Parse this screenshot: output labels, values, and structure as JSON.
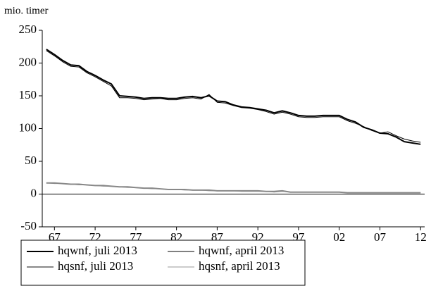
{
  "chart_data": {
    "type": "line",
    "y_axis_label": "mio. timer",
    "x": [
      1966,
      1967,
      1968,
      1969,
      1970,
      1971,
      1972,
      1973,
      1974,
      1975,
      1976,
      1977,
      1978,
      1979,
      1980,
      1981,
      1982,
      1983,
      1984,
      1985,
      1986,
      1987,
      1988,
      1989,
      1990,
      1991,
      1992,
      1993,
      1994,
      1995,
      1996,
      1997,
      1998,
      1999,
      2000,
      2001,
      2002,
      2003,
      2004,
      2005,
      2006,
      2007,
      2008,
      2009,
      2010,
      2011,
      2012
    ],
    "series": [
      {
        "name": "hqwnf, juli 2013",
        "color": "#000000",
        "width": 2,
        "values": [
          221,
          213,
          204,
          197,
          196,
          187,
          181,
          174,
          168,
          150,
          149,
          148,
          146,
          147,
          147,
          146,
          146,
          148,
          149,
          147,
          150,
          142,
          141,
          136,
          133,
          132,
          130,
          128,
          124,
          127,
          124,
          120,
          119,
          119,
          120,
          120,
          120,
          114,
          110,
          102,
          98,
          93,
          92,
          87,
          80,
          78,
          76
        ]
      },
      {
        "name": "hqwnf, april 2013",
        "color": "#000000",
        "width": 1,
        "values": [
          219,
          211,
          202,
          195,
          194,
          185,
          179,
          172,
          165,
          147,
          147,
          146,
          144,
          145,
          146,
          144,
          144,
          146,
          147,
          145,
          152,
          140,
          139,
          135,
          132,
          131,
          129,
          126,
          122,
          125,
          122,
          118,
          117,
          117,
          118,
          118,
          118,
          112,
          108,
          103,
          97,
          93,
          95,
          89,
          84,
          81,
          79
        ]
      },
      {
        "name": "hqsnf, juli 2013",
        "color": "#888888",
        "width": 2,
        "values": [
          17,
          17,
          16,
          15,
          15,
          14,
          13,
          13,
          12,
          11,
          11,
          10,
          9,
          9,
          8,
          7,
          7,
          7,
          6,
          6,
          6,
          5,
          5,
          5,
          5,
          5,
          5,
          4,
          4,
          5,
          3,
          3,
          3,
          3,
          3,
          3,
          3,
          2,
          2,
          2,
          2,
          2,
          2,
          2,
          2,
          2,
          2
        ]
      },
      {
        "name": "hqsnf, april 2013",
        "color": "#999999",
        "width": 1,
        "values": [
          17,
          16,
          16,
          15,
          14,
          14,
          13,
          12,
          12,
          11,
          10,
          10,
          9,
          8,
          8,
          7,
          7,
          6,
          6,
          6,
          5,
          5,
          5,
          5,
          4,
          4,
          4,
          4,
          3,
          4,
          3,
          3,
          3,
          3,
          3,
          3,
          3,
          2,
          2,
          2,
          2,
          2,
          2,
          2,
          2,
          2,
          2
        ]
      }
    ],
    "xlim": [
      1965.5,
      2012.5
    ],
    "xticks": [
      {
        "value": 1967,
        "label": "67"
      },
      {
        "value": 1972,
        "label": "72"
      },
      {
        "value": 1977,
        "label": "77"
      },
      {
        "value": 1982,
        "label": "82"
      },
      {
        "value": 1987,
        "label": "87"
      },
      {
        "value": 1992,
        "label": "92"
      },
      {
        "value": 1997,
        "label": "97"
      },
      {
        "value": 2002,
        "label": "02"
      },
      {
        "value": 2007,
        "label": "07"
      },
      {
        "value": 2012,
        "label": "12"
      }
    ],
    "ylim": [
      -50,
      250
    ],
    "yticks": [
      -50,
      0,
      50,
      100,
      150,
      200,
      250
    ],
    "legend": "bottom"
  }
}
